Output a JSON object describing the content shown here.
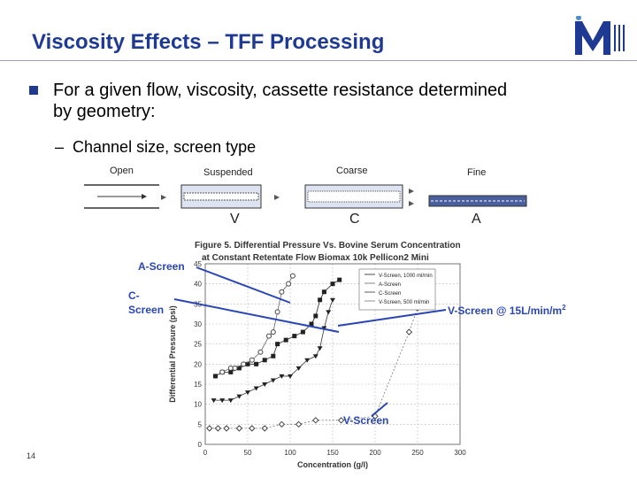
{
  "slide": {
    "title": "Viscosity Effects – TFF Processing",
    "bullet": "For a given flow, viscosity, cassette resistance determined by geometry:",
    "sub_bullet_dash": "–",
    "sub_bullet": "Channel size, screen type",
    "page_number": "14"
  },
  "screens": {
    "labels": [
      "Open",
      "Suspended",
      "Coarse",
      "Fine"
    ],
    "letters": [
      "V",
      "C",
      "A"
    ]
  },
  "annotations": {
    "a_screen": "A-Screen",
    "c_screen_line1": "C-",
    "c_screen_line2": "Screen",
    "v_screen_15": "V-Screen @ 15L/min/m",
    "v_screen_15_sup": "2",
    "v_screen": "V-Screen"
  },
  "colors": {
    "title": "#1f3a93",
    "annotation": "#2a46b5",
    "bullet": "#1f3a93"
  },
  "chart_data": {
    "type": "scatter",
    "title": "Figure 5. Differential Pressure Vs. Bovine Serum Concentration",
    "subtitle": "at Constant Retentate Flow Biomax 10k Pellicon2 Mini",
    "xlabel": "Concentration (g/l)",
    "ylabel": "Differential Pressure (psi)",
    "xlim": [
      0,
      300
    ],
    "ylim": [
      0,
      45
    ],
    "xticks": [
      "0",
      "50",
      "100",
      "150",
      "200",
      "250",
      "300"
    ],
    "yticks": [
      "0",
      "5",
      "10",
      "15",
      "20",
      "25",
      "30",
      "35",
      "40",
      "45"
    ],
    "legend_position": "top-right",
    "series": [
      {
        "name": "V-Screen, 1000 ml/min",
        "marker": "square",
        "x": [
          12,
          20,
          30,
          40,
          50,
          60,
          70,
          80,
          85,
          95,
          105,
          115,
          125,
          130,
          135,
          140,
          150,
          158
        ],
        "y": [
          17,
          18,
          18,
          19,
          20,
          20,
          21,
          22,
          25,
          26,
          27,
          28,
          30,
          32,
          36,
          38,
          40,
          41
        ]
      },
      {
        "name": "A-Screen",
        "marker": "circle",
        "x": [
          20,
          30,
          35,
          45,
          55,
          65,
          75,
          80,
          85,
          90,
          98,
          103
        ],
        "y": [
          18,
          19,
          19,
          20,
          21,
          23,
          27,
          28,
          33,
          38,
          40,
          42
        ]
      },
      {
        "name": "C-Screen",
        "marker": "triangle-down",
        "x": [
          10,
          20,
          30,
          40,
          50,
          60,
          70,
          80,
          90,
          100,
          110,
          120,
          130,
          135,
          140,
          145,
          150
        ],
        "y": [
          11,
          11,
          11,
          12,
          13,
          14,
          15,
          16,
          17,
          17,
          19,
          21,
          22,
          24,
          29,
          33,
          36
        ]
      },
      {
        "name": "V-Screen, 500 ml/min",
        "marker": "diamond",
        "x": [
          5,
          15,
          25,
          40,
          55,
          70,
          90,
          110,
          130,
          160,
          200,
          240,
          250
        ],
        "y": [
          4,
          4,
          4,
          4,
          4,
          4,
          5,
          5,
          6,
          6,
          7,
          28,
          34
        ]
      }
    ]
  }
}
